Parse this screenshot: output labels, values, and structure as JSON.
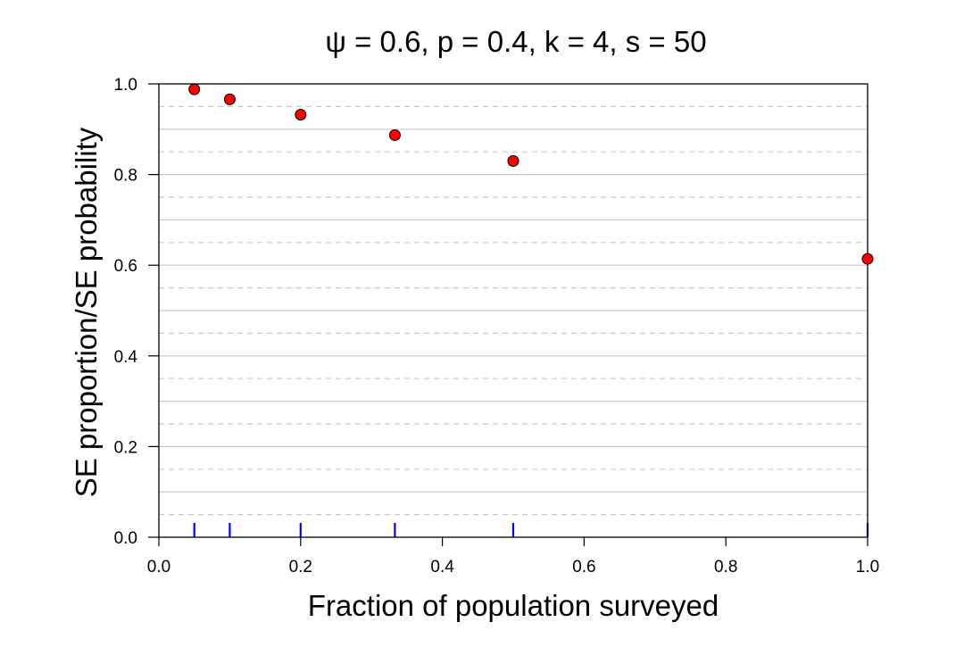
{
  "chart_data": {
    "type": "scatter",
    "title": "ψ = 0.6, p = 0.4, k = 4, s = 50",
    "xlabel": "Fraction of population surveyed",
    "ylabel": "SE proportion/SE probability",
    "xlim": [
      0,
      1
    ],
    "ylim": [
      0,
      1
    ],
    "x_ticks": [
      "0.0",
      "0.2",
      "0.4",
      "0.6",
      "0.8",
      "1.0"
    ],
    "y_ticks": [
      "0.0",
      "0.2",
      "0.4",
      "0.6",
      "0.8",
      "1.0"
    ],
    "grid": "horizontal solid at 0.1, dashed at 0.05 offsets",
    "points": [
      {
        "x": 0.05,
        "y": 0.988
      },
      {
        "x": 0.1,
        "y": 0.966
      },
      {
        "x": 0.2,
        "y": 0.932
      },
      {
        "x": 0.333,
        "y": 0.887
      },
      {
        "x": 0.5,
        "y": 0.83
      },
      {
        "x": 1.0,
        "y": 0.614
      }
    ],
    "rug_x": [
      0.05,
      0.1,
      0.2,
      0.333,
      0.5,
      1.0
    ],
    "colors": {
      "point_fill": "#ff0000",
      "point_edge": "#000000",
      "rug": "#0000ff",
      "grid": "#c8c8c8"
    }
  }
}
